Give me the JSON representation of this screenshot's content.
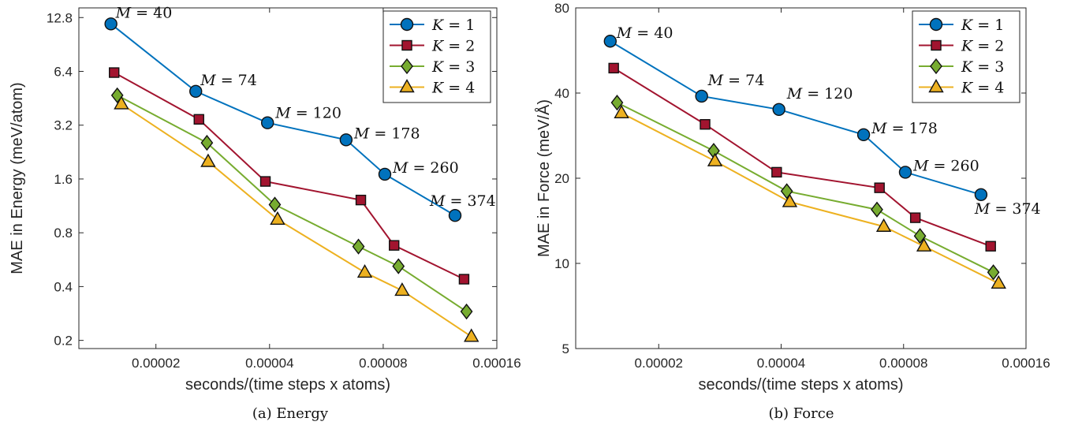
{
  "chart_data": [
    {
      "type": "line",
      "caption": "(a) Energy",
      "xlabel": "seconds/(time steps x atoms)",
      "ylabel": "MAE in Energy (meV/atom)",
      "xscale": "log",
      "yscale": "log",
      "xlim": [
        1.25e-05,
        0.00016
      ],
      "ylim": [
        0.18,
        14.5
      ],
      "xticks": [
        2e-05,
        4e-05,
        8e-05,
        0.00016
      ],
      "xtick_labels": [
        "0.00002",
        "0.00004",
        "0.00008",
        "0.00016"
      ],
      "yticks": [
        0.2,
        0.4,
        0.8,
        1.6,
        3.2,
        6.4,
        12.8
      ],
      "ytick_labels": [
        "0.2",
        "0.4",
        "0.8",
        "1.6",
        "3.2",
        "6.4",
        "12.8"
      ],
      "grid": false,
      "legend": "top-right",
      "series": [
        {
          "name": "K = 1",
          "color": "#0072BD",
          "marker": "circle",
          "x": [
            1.52e-05,
            2.55e-05,
            3.95e-05,
            6.38e-05,
            8.08e-05,
            0.000124
          ],
          "y": [
            11.8,
            4.95,
            3.3,
            2.65,
            1.7,
            1.0
          ]
        },
        {
          "name": "K = 2",
          "color": "#A2142F",
          "marker": "square",
          "x": [
            1.55e-05,
            2.6e-05,
            3.9e-05,
            6.98e-05,
            8.55e-05,
            0.000131
          ],
          "y": [
            6.3,
            3.45,
            1.55,
            1.22,
            0.68,
            0.44
          ]
        },
        {
          "name": "K = 3",
          "color": "#77AC30",
          "marker": "diamond",
          "x": [
            1.58e-05,
            2.73e-05,
            4.13e-05,
            6.88e-05,
            8.78e-05,
            0.000133
          ],
          "y": [
            4.7,
            2.55,
            1.15,
            0.67,
            0.52,
            0.29
          ]
        },
        {
          "name": "K = 4",
          "color": "#EDB120",
          "marker": "triangle",
          "x": [
            1.62e-05,
            2.75e-05,
            4.2e-05,
            7.15e-05,
            8.98e-05,
            0.000137
          ],
          "y": [
            4.2,
            2.0,
            0.95,
            0.48,
            0.38,
            0.21
          ]
        }
      ],
      "annotations": [
        {
          "text": "= 40",
          "series": 0,
          "index": 0
        },
        {
          "text": "= 74",
          "series": 0,
          "index": 1
        },
        {
          "text": "= 120",
          "series": 0,
          "index": 2
        },
        {
          "text": "= 178",
          "series": 0,
          "index": 3
        },
        {
          "text": "= 260",
          "series": 0,
          "index": 4
        },
        {
          "text": "= 374",
          "series": 0,
          "index": 5
        }
      ]
    },
    {
      "type": "line",
      "caption": "(b) Force",
      "xlabel": "seconds/(time steps x atoms)",
      "ylabel": "MAE in Force (meV/Å)",
      "xscale": "log",
      "yscale": "log",
      "xlim": [
        1.25e-05,
        0.00016
      ],
      "ylim": [
        5,
        80
      ],
      "xticks": [
        2e-05,
        4e-05,
        8e-05,
        0.00016
      ],
      "xtick_labels": [
        "0.00002",
        "0.00004",
        "0.00008",
        "0.00016"
      ],
      "yticks": [
        5,
        10,
        20,
        40,
        80
      ],
      "ytick_labels": [
        "5",
        "10",
        "20",
        "40",
        "80"
      ],
      "grid": false,
      "legend": "top-right",
      "series": [
        {
          "name": "K = 1",
          "color": "#0072BD",
          "marker": "circle",
          "x": [
            1.52e-05,
            2.55e-05,
            3.95e-05,
            6.38e-05,
            8.08e-05,
            0.000124
          ],
          "y": [
            61,
            39,
            35,
            28.5,
            21,
            17.5
          ]
        },
        {
          "name": "K = 2",
          "color": "#A2142F",
          "marker": "square",
          "x": [
            1.55e-05,
            2.6e-05,
            3.9e-05,
            6.98e-05,
            8.55e-05,
            0.000131
          ],
          "y": [
            49,
            31,
            21,
            18.5,
            14.5,
            11.5
          ]
        },
        {
          "name": "K = 3",
          "color": "#77AC30",
          "marker": "diamond",
          "x": [
            1.58e-05,
            2.73e-05,
            4.13e-05,
            6.88e-05,
            8.78e-05,
            0.000133
          ],
          "y": [
            37,
            25,
            18,
            15.5,
            12.5,
            9.3
          ]
        },
        {
          "name": "K = 4",
          "color": "#EDB120",
          "marker": "triangle",
          "x": [
            1.62e-05,
            2.75e-05,
            4.2e-05,
            7.15e-05,
            8.98e-05,
            0.000137
          ],
          "y": [
            34,
            23,
            16.5,
            13.5,
            11.5,
            8.5
          ]
        }
      ],
      "annotations": [
        {
          "text": "= 40",
          "series": 0,
          "index": 0
        },
        {
          "text": "= 74",
          "series": 0,
          "index": 1
        },
        {
          "text": "= 120",
          "series": 0,
          "index": 2
        },
        {
          "text": "= 178",
          "series": 0,
          "index": 3
        },
        {
          "text": "= 260",
          "series": 0,
          "index": 4
        },
        {
          "text": "= 374",
          "series": 0,
          "index": 5
        }
      ]
    }
  ],
  "annotation_symbol": "M",
  "legend_symbol": "K"
}
